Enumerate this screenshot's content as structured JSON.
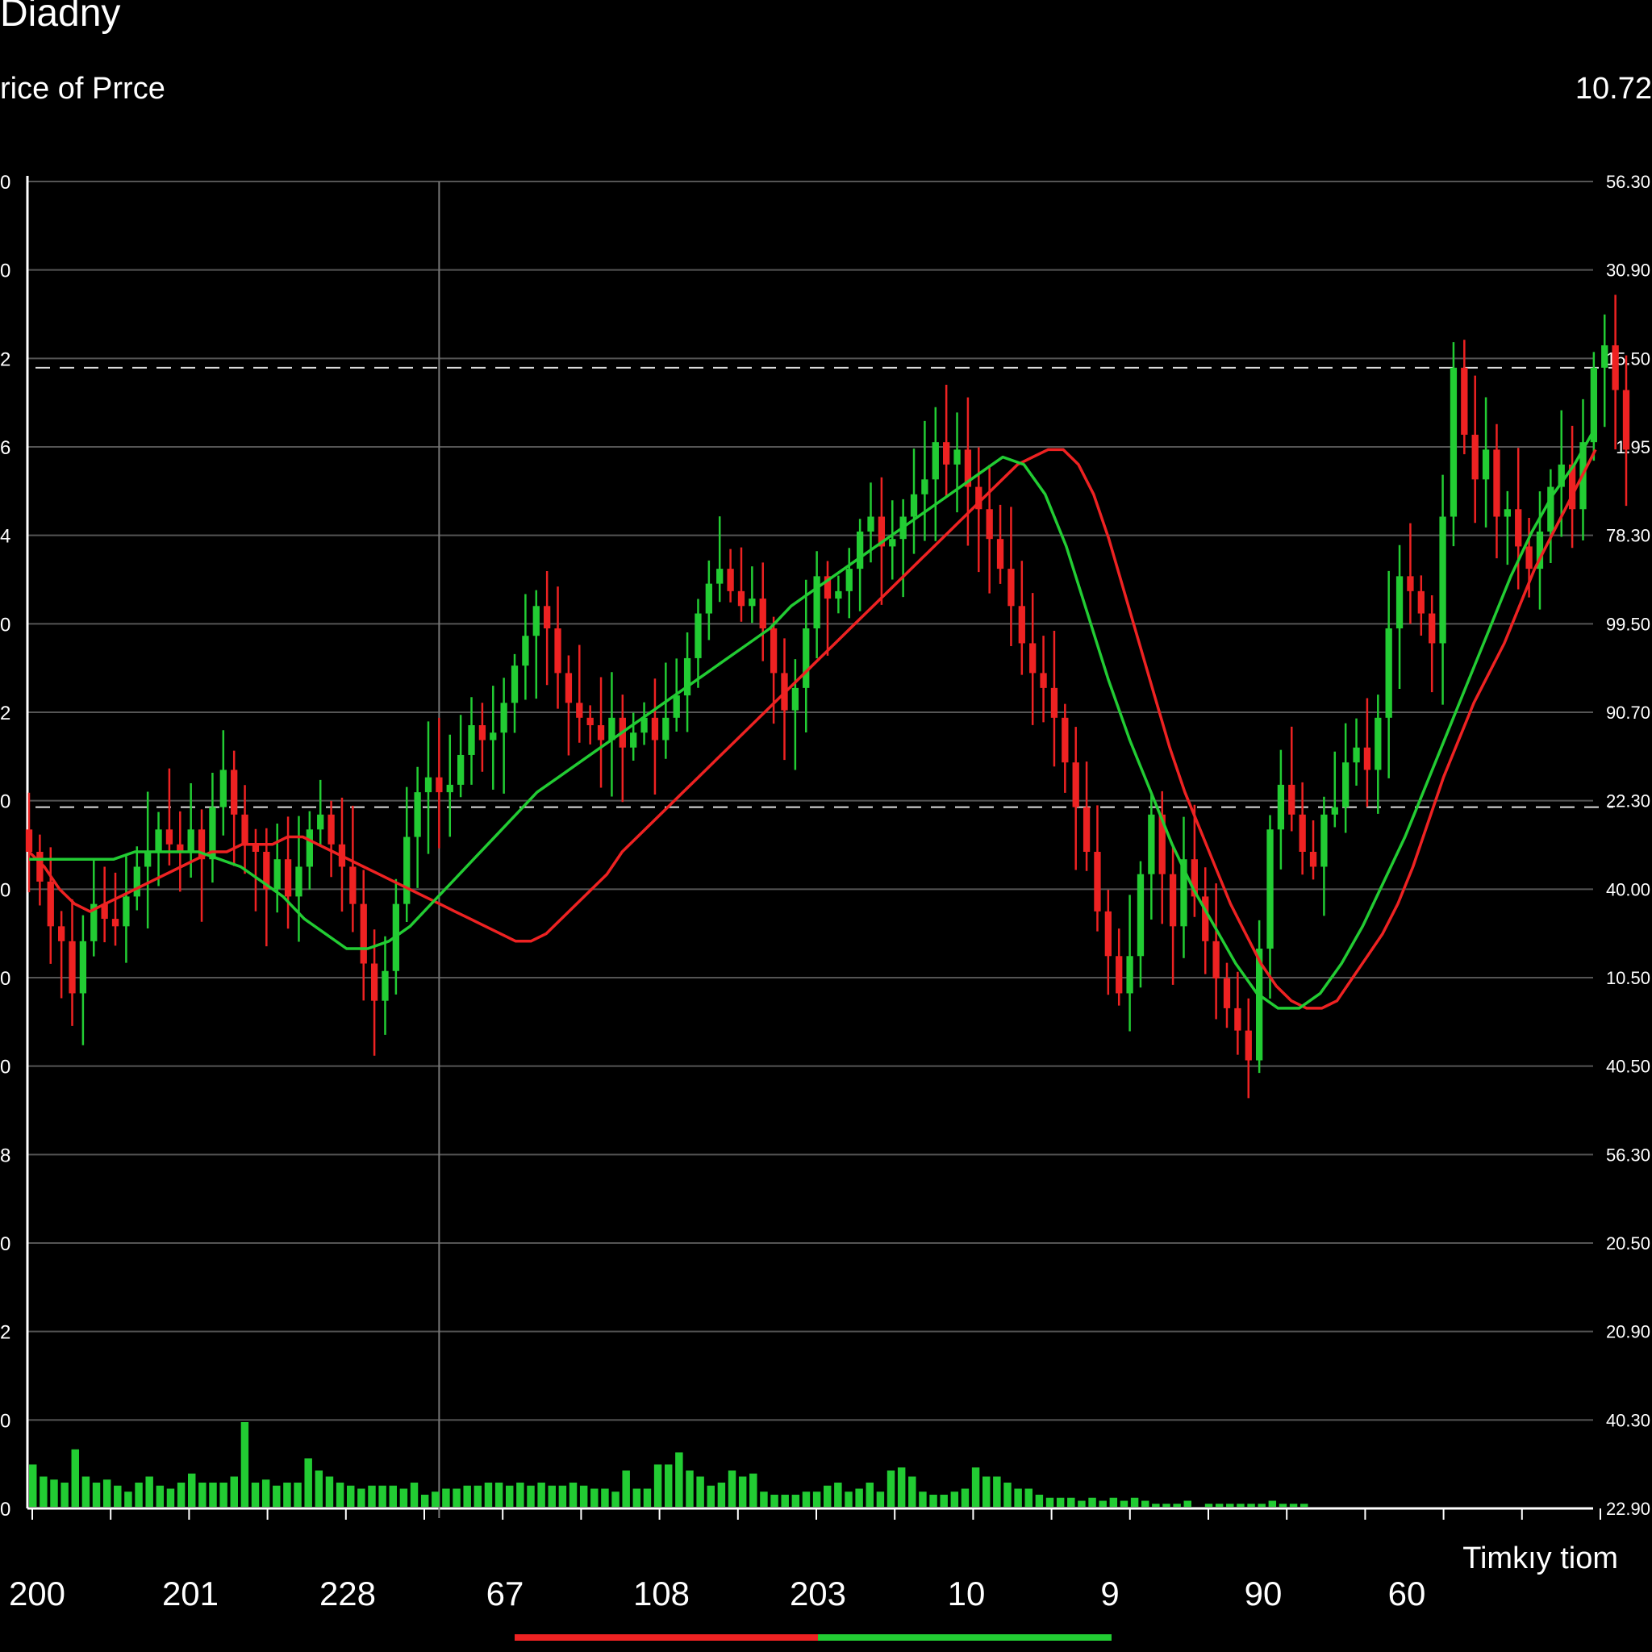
{
  "title": "Diadny",
  "subtitle": "rice of Prrce",
  "last_price": "10.72",
  "colors": {
    "background": "#000000",
    "up": "#22cc33",
    "down": "#ee2222",
    "grid": "#555555",
    "axis": "#ffffff"
  },
  "chart_data": {
    "type": "candlestick",
    "title": "Diadny",
    "subtitle": "rice of Prrce",
    "xlabel": "Timkıy tiom",
    "x_tick_labels": [
      "200",
      "201",
      "228",
      "67",
      "108",
      "203",
      "10",
      "9",
      "90",
      "60"
    ],
    "left_axis_labels": [
      "0",
      "0",
      "2",
      "6",
      "4",
      "0",
      "2",
      "0",
      "0",
      "0",
      "0",
      "8",
      "0",
      "2",
      "0",
      "0"
    ],
    "right_axis_labels": [
      "56.30",
      "30.90",
      "15.50",
      "1.95",
      "78.30",
      "99.50",
      "90.70",
      "22.30",
      "40.00",
      "10.50",
      "40.50",
      "56.30",
      "20.50",
      "20.90",
      "40.30",
      "22.90"
    ],
    "ylim": [
      0,
      15
    ],
    "grid": true,
    "reference_lines": [
      12.5,
      6.6
    ],
    "cursor_index": 38,
    "candles_close": [
      6.0,
      5.6,
      5.0,
      4.8,
      4.1,
      4.8,
      5.3,
      5.1,
      5.0,
      5.4,
      5.8,
      6.0,
      6.3,
      6.1,
      6.0,
      6.3,
      5.9,
      6.6,
      7.1,
      6.5,
      6.1,
      6.0,
      5.5,
      5.9,
      5.4,
      5.8,
      6.3,
      6.5,
      6.1,
      5.8,
      5.3,
      4.5,
      4.0,
      4.4,
      5.3,
      6.2,
      6.8,
      7.0,
      6.8,
      6.9,
      7.3,
      7.7,
      7.5,
      7.6,
      8.0,
      8.5,
      8.9,
      9.3,
      9.0,
      8.4,
      8.0,
      7.8,
      7.7,
      7.5,
      7.8,
      7.4,
      7.6,
      7.8,
      7.5,
      7.8,
      8.1,
      8.6,
      9.2,
      9.6,
      9.8,
      9.5,
      9.3,
      9.4,
      9.0,
      8.4,
      7.9,
      8.2,
      9.0,
      9.7,
      9.4,
      9.5,
      9.8,
      10.3,
      10.5,
      10.1,
      10.2,
      10.5,
      10.8,
      11.0,
      11.5,
      11.2,
      11.4,
      10.9,
      10.6,
      10.2,
      9.8,
      9.3,
      8.8,
      8.4,
      8.2,
      7.8,
      7.2,
      6.6,
      6.0,
      5.2,
      4.6,
      4.1,
      4.6,
      5.7,
      6.5,
      5.7,
      5.0,
      5.9,
      5.4,
      4.8,
      4.3,
      3.9,
      3.6,
      3.2,
      4.7,
      6.3,
      6.9,
      6.5,
      6.0,
      5.8,
      6.5,
      6.6,
      7.2,
      7.4,
      7.1,
      7.8,
      9.0,
      9.7,
      9.5,
      9.2,
      8.8,
      10.5,
      12.5,
      11.6,
      11.0,
      11.4,
      10.5,
      10.6,
      10.1,
      9.8,
      10.3,
      10.9,
      11.2,
      10.6,
      11.5,
      12.5,
      12.8,
      12.2,
      11.4
    ],
    "series": [
      {
        "name": "",
        "values": [
          6.0,
          5.8,
          5.5,
          5.3,
          5.2,
          5.3,
          5.4,
          5.5,
          5.6,
          5.7,
          5.8,
          5.9,
          6.0,
          6.0,
          6.1,
          6.1,
          6.1,
          6.2,
          6.2,
          6.1,
          6.0,
          5.9,
          5.8,
          5.7,
          5.6,
          5.5,
          5.4,
          5.3,
          5.2,
          5.1,
          5.0,
          4.9,
          4.8,
          4.8,
          4.9,
          5.1,
          5.3,
          5.5,
          5.7,
          6.0,
          6.2,
          6.4,
          6.6,
          6.8,
          7.0,
          7.2,
          7.4,
          7.6,
          7.8,
          8.0,
          8.2,
          8.4,
          8.6,
          8.8,
          9.0,
          9.2,
          9.4,
          9.6,
          9.8,
          10.0,
          10.2,
          10.4,
          10.6,
          10.8,
          11.0,
          11.2,
          11.3,
          11.4,
          11.4,
          11.2,
          10.8,
          10.2,
          9.5,
          8.8,
          8.1,
          7.4,
          6.8,
          6.3,
          5.8,
          5.3,
          4.9,
          4.5,
          4.2,
          4.0,
          3.9,
          3.9,
          4.0,
          4.3,
          4.6,
          4.9,
          5.3,
          5.8,
          6.4,
          7.0,
          7.5,
          8.0,
          8.4,
          8.8,
          9.3,
          9.8,
          10.2,
          10.6,
          11.0,
          11.4
        ]
      },
      {
        "name": "",
        "values": [
          5.9,
          5.9,
          5.9,
          5.9,
          5.9,
          6.0,
          6.0,
          6.0,
          6.0,
          5.9,
          5.8,
          5.6,
          5.4,
          5.1,
          4.9,
          4.7,
          4.7,
          4.8,
          5.0,
          5.3,
          5.6,
          5.9,
          6.2,
          6.5,
          6.8,
          7.0,
          7.2,
          7.4,
          7.6,
          7.8,
          8.0,
          8.2,
          8.4,
          8.6,
          8.8,
          9.0,
          9.3,
          9.5,
          9.7,
          9.9,
          10.1,
          10.3,
          10.5,
          10.7,
          10.9,
          11.1,
          11.3,
          11.2,
          10.8,
          10.1,
          9.2,
          8.3,
          7.5,
          6.8,
          6.1,
          5.5,
          5.0,
          4.5,
          4.1,
          3.9,
          3.9,
          4.1,
          4.5,
          5.0,
          5.6,
          6.2,
          6.9,
          7.6,
          8.3,
          9.0,
          9.7,
          10.3,
          10.8,
          11.2,
          11.7
        ]
      }
    ],
    "volume": [
      7,
      5,
      4.5,
      4,
      9.5,
      5,
      4,
      4.5,
      3.5,
      2.5,
      4,
      5,
      3.5,
      3,
      4,
      5.5,
      4,
      4,
      4,
      5,
      14,
      4,
      4.5,
      3.5,
      4,
      4,
      8,
      6,
      5,
      4,
      3.5,
      3,
      3.5,
      3.5,
      3.5,
      3,
      4,
      2,
      2.5,
      3,
      3,
      3.5,
      3.5,
      4,
      4,
      3.5,
      4,
      3.5,
      4,
      3.5,
      3.5,
      4,
      3.5,
      3,
      3,
      2.5,
      6,
      3,
      3,
      7,
      7,
      9,
      6,
      5,
      3.5,
      4,
      6,
      5,
      5.5,
      2.5,
      2,
      2,
      2,
      2.5,
      2.5,
      3.5,
      4,
      2.5,
      3,
      4,
      2.5,
      6,
      6.5,
      5,
      2.5,
      2,
      2,
      2.5,
      3,
      6.5,
      5,
      5,
      4,
      3,
      3,
      2,
      1.5,
      1.5,
      1.5,
      1,
      1.5,
      1,
      1.5,
      1,
      1.5,
      1,
      0.5,
      0.5,
      0.5,
      1,
      0,
      0.5,
      0.5,
      0.5,
      0.5,
      0.5,
      0.5,
      1,
      0.5,
      0.5,
      0.5
    ]
  }
}
